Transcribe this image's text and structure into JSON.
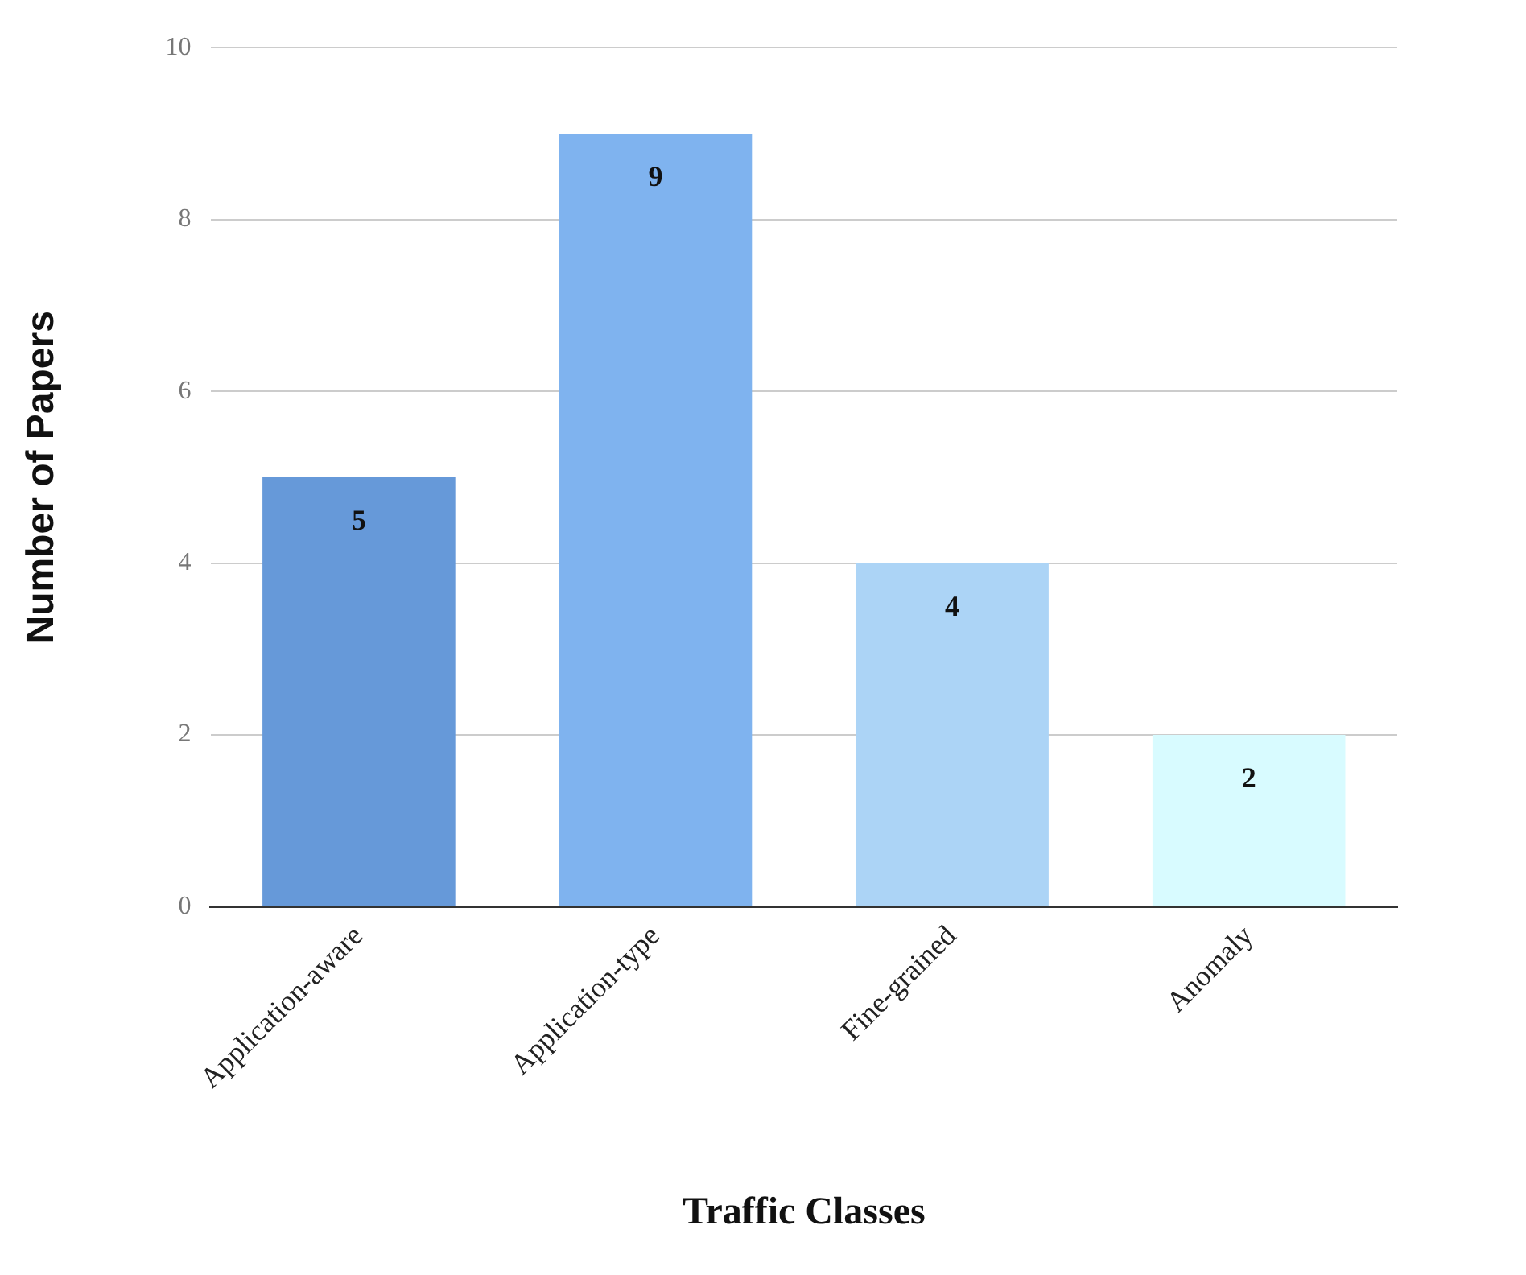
{
  "chart_data": {
    "type": "bar",
    "xlabel": "Traffic Classes",
    "ylabel": "Number of Papers",
    "categories": [
      "Application-aware",
      "Application-type",
      "Fine-grained",
      "Anomaly"
    ],
    "values": [
      5,
      9,
      4,
      2
    ],
    "colors": [
      "#6699d9",
      "#7fb3ef",
      "#acd4f6",
      "#d8fbff"
    ],
    "ylim": [
      0,
      10
    ],
    "yticks": [
      0,
      2,
      4,
      6,
      8,
      10
    ],
    "grid": "y",
    "data_labels": true
  }
}
